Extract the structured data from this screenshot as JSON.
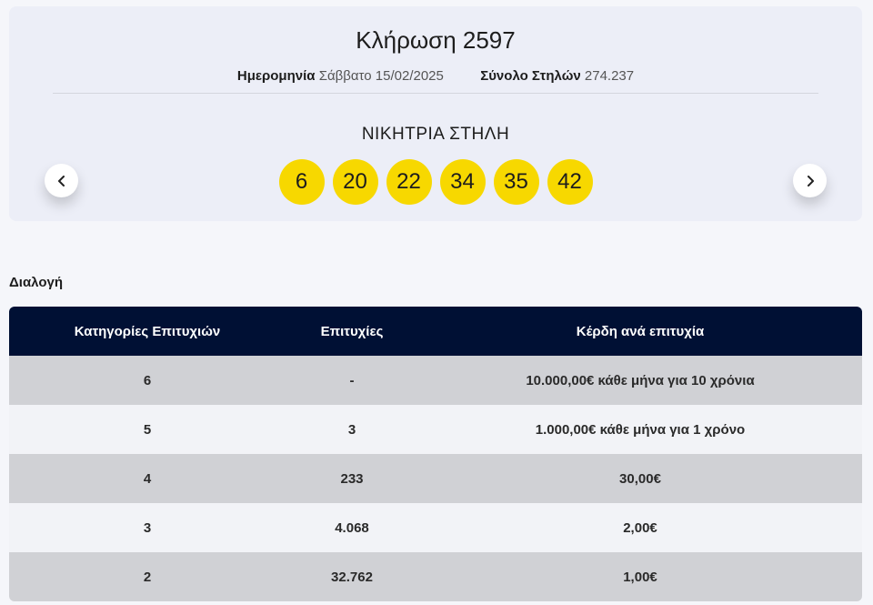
{
  "draw": {
    "title": "Κλήρωση 2597",
    "date_label": "Ημερομηνία",
    "date_value": "Σάββατο 15/02/2025",
    "columns_label": "Σύνολο Στηλών",
    "columns_value": "274.237",
    "winning_label": "ΝΙΚΗΤΡΙΑ ΣΤΗΛΗ",
    "numbers": [
      "6",
      "20",
      "22",
      "34",
      "35",
      "42"
    ],
    "ball_color": "#f7d800"
  },
  "nav": {
    "prev_icon": "chevron-left-icon",
    "next_icon": "chevron-right-icon"
  },
  "section": {
    "label": "Διαλογή"
  },
  "table": {
    "headers": [
      "Κατηγορίες Επιτυχιών",
      "Επιτυχίες",
      "Κέρδη ανά επιτυχία"
    ],
    "header_bg": "#001034",
    "rows": [
      [
        "6",
        "-",
        "10.000,00€ κάθε μήνα για 10 χρόνια"
      ],
      [
        "5",
        "3",
        "1.000,00€ κάθε μήνα για 1 χρόνο"
      ],
      [
        "4",
        "233",
        "30,00€"
      ],
      [
        "3",
        "4.068",
        "2,00€"
      ],
      [
        "2",
        "32.762",
        "1,00€"
      ]
    ]
  }
}
